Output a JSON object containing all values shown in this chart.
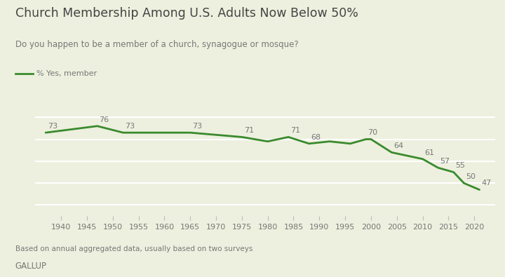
{
  "title": "Church Membership Among U.S. Adults Now Below 50%",
  "subtitle": "Do you happen to be a member of a church, synagogue or mosque?",
  "legend_label": "% Yes, member",
  "footnote": "Based on annual aggregated data, usually based on two surveys",
  "source": "GALLUP",
  "background_color": "#edf0de",
  "line_color": "#3a8a2e",
  "text_color_title": "#444444",
  "text_color_body": "#777777",
  "x_tick_labels": [
    "1940",
    "1945",
    "1950",
    "1955",
    "1960",
    "1965",
    "1970",
    "1975",
    "1980",
    "1985",
    "1990",
    "1995",
    "2000",
    "2005",
    "2010",
    "2015",
    "2020"
  ],
  "data_points": [
    [
      1937,
      73
    ],
    [
      1947,
      76
    ],
    [
      1952,
      73
    ],
    [
      1965,
      73
    ],
    [
      1975,
      71
    ],
    [
      1980,
      69
    ],
    [
      1984,
      71
    ],
    [
      1988,
      68
    ],
    [
      1992,
      69
    ],
    [
      1996,
      68
    ],
    [
      1999,
      70
    ],
    [
      2000,
      70
    ],
    [
      2004,
      64
    ],
    [
      2010,
      61
    ],
    [
      2013,
      57
    ],
    [
      2016,
      55
    ],
    [
      2018,
      50
    ],
    [
      2021,
      47
    ]
  ],
  "labeled_points": [
    [
      1937,
      73,
      "left"
    ],
    [
      1947,
      76,
      "left"
    ],
    [
      1952,
      73,
      "left"
    ],
    [
      1965,
      73,
      "left"
    ],
    [
      1975,
      71,
      "left"
    ],
    [
      1984,
      71,
      "left"
    ],
    [
      1988,
      68,
      "left"
    ],
    [
      1999,
      70,
      "left"
    ],
    [
      2004,
      64,
      "left"
    ],
    [
      2010,
      61,
      "left"
    ],
    [
      2013,
      57,
      "left"
    ],
    [
      2016,
      55,
      "left"
    ],
    [
      2018,
      50,
      "left"
    ],
    [
      2021,
      47,
      "left"
    ]
  ],
  "ylim": [
    35,
    88
  ],
  "xlim": [
    1935,
    2024
  ],
  "yticks": [
    40,
    50,
    60,
    70,
    80
  ],
  "grid_color": "#ffffff",
  "grid_linewidth": 1.5
}
